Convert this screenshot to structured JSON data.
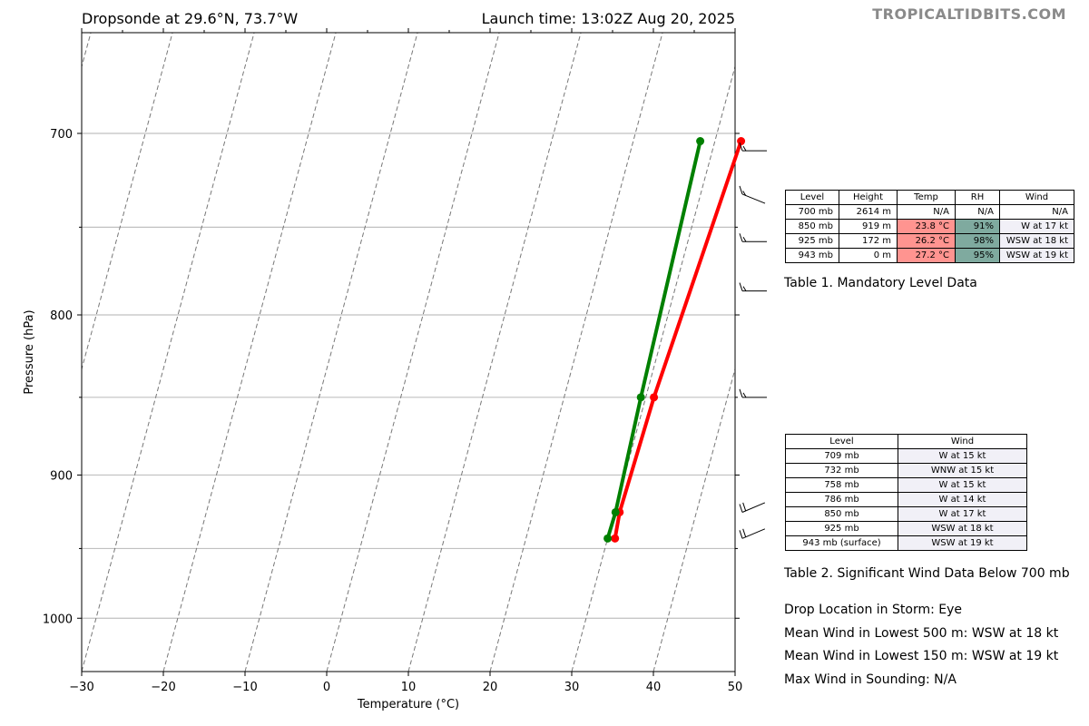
{
  "header": {
    "title_left": "Dropsonde at 29.6°N, 73.7°W",
    "title_right": "Launch time: 13:02Z Aug 20, 2025",
    "watermark": "TROPICALTIDBITS.COM"
  },
  "chart_data": {
    "type": "line",
    "title": "",
    "xlabel": "Temperature (°C)",
    "ylabel": "Pressure (hPa)",
    "xlim": [
      -30,
      50
    ],
    "ylim": [
      1040,
      650
    ],
    "y_scale": "log",
    "x_ticks": [
      -30,
      -20,
      -10,
      0,
      10,
      20,
      30,
      40,
      50
    ],
    "x_tick_labels": [
      "−30",
      "−20",
      "−10",
      "0",
      "10",
      "20",
      "30",
      "40",
      "50"
    ],
    "y_ticks": [
      700,
      800,
      900,
      1000
    ],
    "y_tick_labels": [
      "700",
      "800",
      "900",
      "1000"
    ],
    "grid_pressure_levels": [
      700,
      750,
      800,
      850,
      900,
      950,
      1000
    ],
    "skewed_isotherms": "dashed gray",
    "series": [
      {
        "color": "#ff0000",
        "points": [
          [
            33.2,
            704
          ],
          [
            31.0,
            850
          ],
          [
            30.6,
            925
          ],
          [
            30.9,
            943
          ]
        ]
      },
      {
        "color": "#008000",
        "points": [
          [
            28.2,
            704
          ],
          [
            29.4,
            850
          ],
          [
            30.1,
            925
          ],
          [
            30.0,
            943
          ]
        ]
      }
    ],
    "wind_barbs": [
      {
        "pressure": 709,
        "direction_deg": 270,
        "speed_kt": 15
      },
      {
        "pressure": 732,
        "direction_deg": 292,
        "speed_kt": 15
      },
      {
        "pressure": 758,
        "direction_deg": 270,
        "speed_kt": 15
      },
      {
        "pressure": 786,
        "direction_deg": 270,
        "speed_kt": 14
      },
      {
        "pressure": 850,
        "direction_deg": 270,
        "speed_kt": 17
      },
      {
        "pressure": 925,
        "direction_deg": 247,
        "speed_kt": 18
      },
      {
        "pressure": 943,
        "direction_deg": 247,
        "speed_kt": 19
      }
    ]
  },
  "table1": {
    "headers": [
      "Level",
      "Height",
      "Temp",
      "RH",
      "Wind"
    ],
    "rows": [
      [
        "700 mb",
        "2614 m",
        "N/A",
        "N/A",
        "N/A"
      ],
      [
        "850 mb",
        "919 m",
        "23.8 °C",
        "91%",
        "W at 17 kt"
      ],
      [
        "925 mb",
        "172 m",
        "26.2 °C",
        "98%",
        "WSW at 18 kt"
      ],
      [
        "943 mb",
        "0 m",
        "27.2 °C",
        "95%",
        "WSW at 19 kt"
      ]
    ],
    "caption": "Table 1. Mandatory Level Data",
    "colors": {
      "temp_cell": "#ff9490",
      "rh_cell": "#7faa9f",
      "wind_cell": "#f1f0f7"
    }
  },
  "table2": {
    "headers": [
      "Level",
      "Wind"
    ],
    "rows": [
      [
        "709 mb",
        "W at 15 kt"
      ],
      [
        "732 mb",
        "WNW at 15 kt"
      ],
      [
        "758 mb",
        "W at 15 kt"
      ],
      [
        "786 mb",
        "W at 14 kt"
      ],
      [
        "850 mb",
        "W at 17 kt"
      ],
      [
        "925 mb",
        "WSW at 18 kt"
      ],
      [
        "943 mb (surface)",
        "WSW at 19 kt"
      ]
    ],
    "caption": "Table 2. Significant Wind Data Below 700 mb",
    "colors": {
      "wind_cell": "#f1f0f7"
    }
  },
  "info": {
    "location": "Drop Location in Storm: Eye",
    "mean_500": "Mean Wind in Lowest 500 m:  WSW at 18 kt",
    "mean_150": "Mean Wind in Lowest 150 m:  WSW at 19 kt",
    "max_wind": "Max Wind in Sounding:  N/A"
  }
}
